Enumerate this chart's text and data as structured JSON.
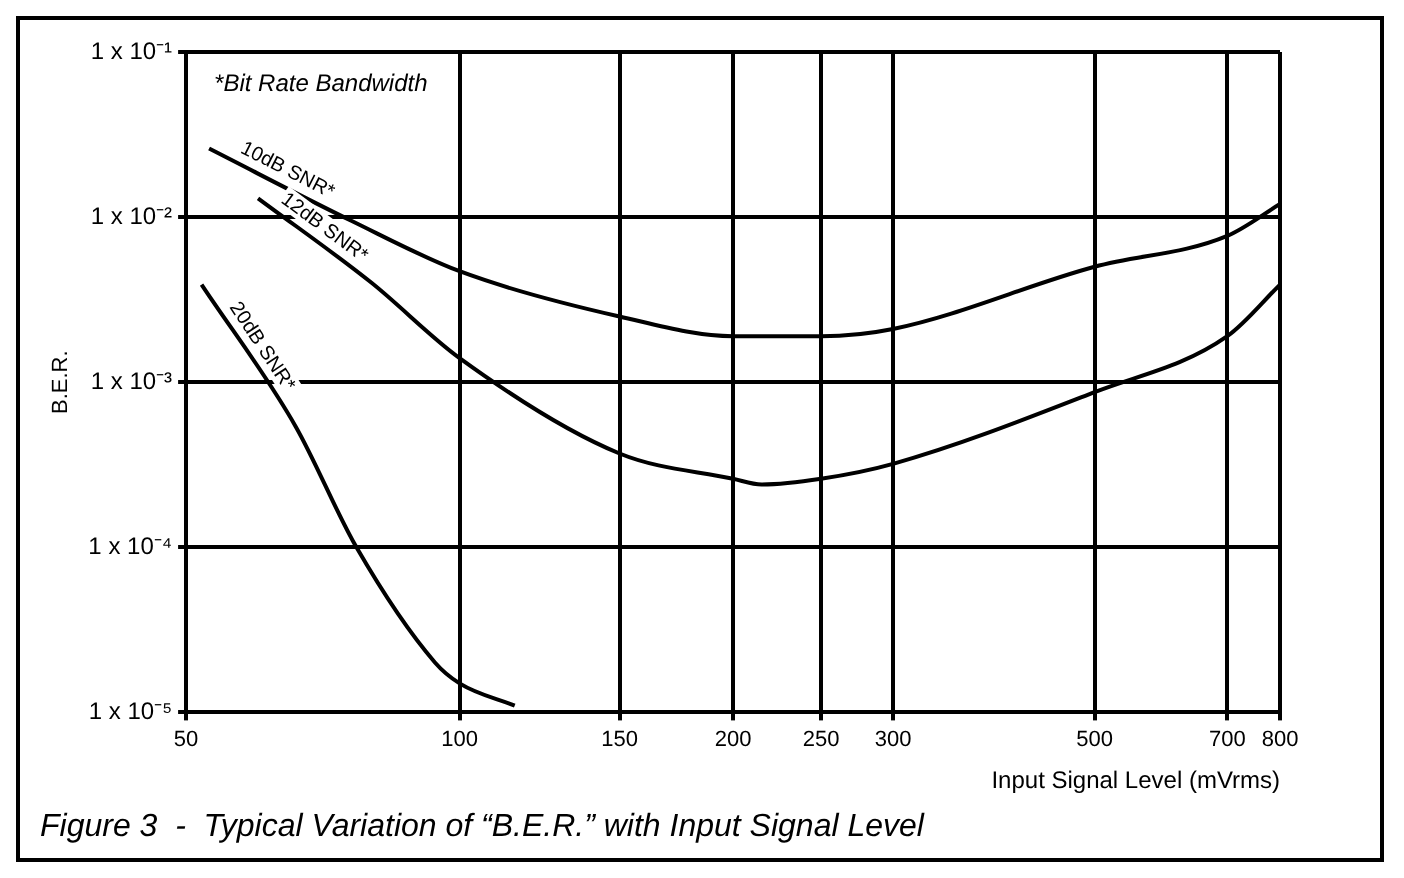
{
  "chart_data": {
    "type": "line",
    "title": "Figure 3  -  Typical Variation of “B.E.R.” with Input Signal Level",
    "xlabel": "Input Signal Level (mVrms)",
    "ylabel": "B.E.R.",
    "annotations": [
      "*Bit Rate Bandwidth"
    ],
    "log": "xy",
    "grid": true,
    "legend": false,
    "marker": "none",
    "line_style": "solid",
    "xlim": [
      50,
      800
    ],
    "xticks": [
      50,
      100,
      150,
      200,
      250,
      300,
      500,
      700,
      800
    ],
    "ylim": [
      1e-05,
      0.1
    ],
    "yticks": [
      {
        "value": 0.1,
        "label": "1 x 10⁻¹"
      },
      {
        "value": 0.01,
        "label": "1 x 10⁻²"
      },
      {
        "value": 0.001,
        "label": "1 x 10⁻³"
      },
      {
        "value": 0.0001,
        "label": "1 x 10⁻⁴"
      },
      {
        "value": 1e-05,
        "label": "1 x 10⁻⁵"
      }
    ],
    "series": [
      {
        "name": "10dB SNR*",
        "color": "#000000",
        "x": [
          53,
          76,
          100,
          150,
          200,
          250,
          300,
          500,
          700,
          800
        ],
        "values": [
          0.026,
          0.0095,
          0.0047,
          0.0025,
          0.0019,
          0.0019,
          0.0021,
          0.005,
          0.0077,
          0.012
        ]
      },
      {
        "name": "12dB SNR*",
        "color": "#000000",
        "x": [
          60,
          80,
          100,
          150,
          200,
          215,
          250,
          300,
          500,
          700,
          800
        ],
        "values": [
          0.013,
          0.004,
          0.0014,
          0.00037,
          0.00026,
          0.00024,
          0.00026,
          0.00032,
          0.00087,
          0.0019,
          0.0039
        ]
      },
      {
        "name": "20dB SNR*",
        "color": "#000000",
        "x": [
          52,
          66,
          77,
          94,
          100,
          115
        ],
        "values": [
          0.0039,
          0.00054,
          0.0001,
          2e-05,
          1.5e-05,
          1.1e-05
        ]
      }
    ]
  }
}
